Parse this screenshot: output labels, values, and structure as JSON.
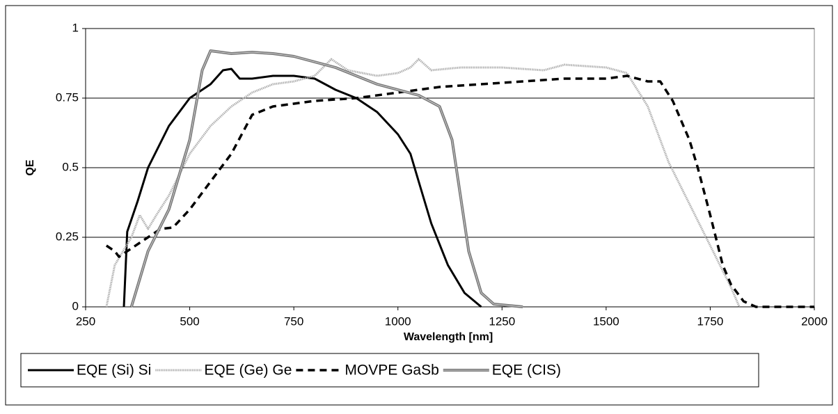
{
  "chart_data": {
    "type": "line",
    "xlabel": "Wavelength [nm]",
    "ylabel": "QE",
    "xlim": [
      250,
      2000
    ],
    "xticks": [
      250,
      500,
      750,
      1000,
      1250,
      1500,
      1750,
      2000
    ],
    "ylim": [
      0,
      1
    ],
    "yticks": [
      0,
      0.25,
      0.5,
      0.75,
      1
    ],
    "grid": true,
    "legend": "bottom",
    "series": [
      {
        "name": "EQE (Si) Si",
        "color": "#000000",
        "style": "solid",
        "x": [
          342,
          350,
          375,
          400,
          450,
          500,
          550,
          580,
          600,
          620,
          650,
          700,
          750,
          800,
          850,
          900,
          950,
          1000,
          1030,
          1050,
          1080,
          1120,
          1160,
          1200
        ],
        "values": [
          0,
          0.27,
          0.38,
          0.5,
          0.65,
          0.75,
          0.8,
          0.85,
          0.855,
          0.82,
          0.82,
          0.83,
          0.83,
          0.82,
          0.78,
          0.75,
          0.7,
          0.62,
          0.55,
          0.45,
          0.3,
          0.15,
          0.05,
          0
        ]
      },
      {
        "name": "EQE (Ge) Ge",
        "color": "#b0b0b0",
        "style": "dotted",
        "x": [
          300,
          320,
          340,
          360,
          380,
          400,
          420,
          450,
          500,
          550,
          600,
          650,
          700,
          750,
          800,
          840,
          880,
          950,
          1000,
          1030,
          1050,
          1080,
          1150,
          1250,
          1350,
          1400,
          1500,
          1550,
          1600,
          1650,
          1700,
          1750,
          1800,
          1820
        ],
        "values": [
          0,
          0.15,
          0.2,
          0.25,
          0.33,
          0.28,
          0.33,
          0.4,
          0.55,
          0.65,
          0.72,
          0.77,
          0.8,
          0.81,
          0.83,
          0.89,
          0.85,
          0.83,
          0.84,
          0.86,
          0.89,
          0.85,
          0.86,
          0.86,
          0.85,
          0.87,
          0.86,
          0.84,
          0.72,
          0.52,
          0.37,
          0.22,
          0.07,
          0
        ]
      },
      {
        "name": "MOVPE GaSb",
        "color": "#000000",
        "style": "dashed",
        "x": [
          300,
          320,
          330,
          350,
          400,
          430,
          460,
          500,
          550,
          600,
          650,
          700,
          800,
          900,
          1000,
          1100,
          1200,
          1300,
          1400,
          1500,
          1550,
          1600,
          1630,
          1660,
          1700,
          1720,
          1750,
          1780,
          1800,
          1830,
          1860,
          2000
        ],
        "values": [
          0.22,
          0.2,
          0.18,
          0.2,
          0.25,
          0.28,
          0.285,
          0.35,
          0.45,
          0.55,
          0.69,
          0.72,
          0.74,
          0.75,
          0.77,
          0.79,
          0.8,
          0.81,
          0.82,
          0.82,
          0.83,
          0.81,
          0.81,
          0.74,
          0.6,
          0.5,
          0.33,
          0.15,
          0.08,
          0.02,
          0,
          0
        ]
      },
      {
        "name": "EQE (CIS)",
        "color": "#777777",
        "style": "double",
        "x": [
          360,
          380,
          400,
          450,
          500,
          530,
          550,
          600,
          650,
          700,
          750,
          800,
          850,
          900,
          950,
          1000,
          1050,
          1100,
          1130,
          1150,
          1170,
          1200,
          1230,
          1300
        ],
        "values": [
          0,
          0.1,
          0.2,
          0.35,
          0.6,
          0.85,
          0.92,
          0.91,
          0.915,
          0.91,
          0.9,
          0.88,
          0.86,
          0.83,
          0.8,
          0.78,
          0.76,
          0.72,
          0.6,
          0.4,
          0.2,
          0.05,
          0.01,
          0
        ]
      }
    ]
  }
}
